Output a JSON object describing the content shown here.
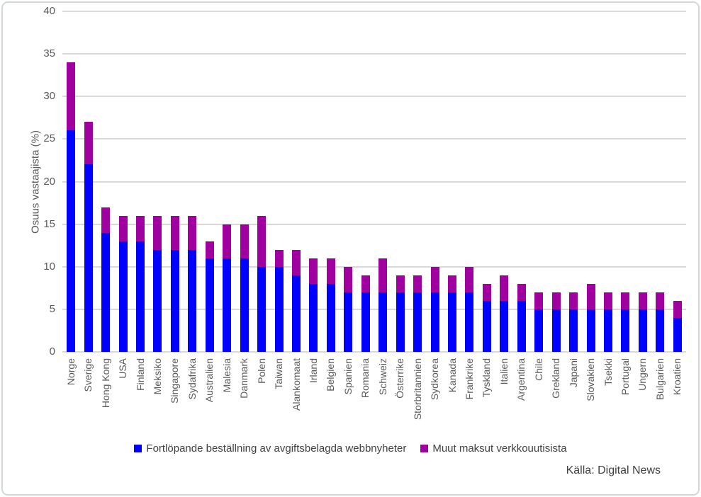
{
  "chart_data": {
    "type": "bar",
    "stacked": true,
    "orientation": "vertical",
    "title": "",
    "xlabel": "",
    "ylabel": "Osuus vastaajista (%)",
    "ylim": [
      0,
      40
    ],
    "ytick_step": 5,
    "grid": true,
    "legend_position": "bottom",
    "categories": [
      "Norge",
      "Sverige",
      "Hong Kong",
      "USA",
      "Finland",
      "Meksiko",
      "Singapore",
      "Sydafrika",
      "Australien",
      "Malesia",
      "Danmark",
      "Polen",
      "Taiwan",
      "Alankomaat",
      "Irland",
      "Belgien",
      "Spanien",
      "Romania",
      "Schweiz",
      "Österrike",
      "Storbritannien",
      "Sydkorea",
      "Kanada",
      "Frankrike",
      "Tyskland",
      "Italien",
      "Argentina",
      "Chile",
      "Grekland",
      "Japani",
      "Slovakien",
      "Tsekki",
      "Portugal",
      "Ungern",
      "Bulgarien",
      "Kroatien"
    ],
    "series": [
      {
        "name": "Fortlöpande beställning av avgiftsbelagda webbnyheter",
        "color": "#0000fe",
        "values": [
          26,
          22,
          14,
          13,
          13,
          12,
          12,
          12,
          11,
          11,
          11,
          10,
          10,
          9,
          8,
          8,
          7,
          7,
          7,
          7,
          7,
          7,
          7,
          7,
          6,
          6,
          6,
          5,
          5,
          5,
          5,
          5,
          5,
          5,
          5,
          4
        ]
      },
      {
        "name": "Muut maksut verkkouutisista",
        "color": "#a000a0",
        "values": [
          8,
          5,
          3,
          3,
          3,
          4,
          4,
          4,
          2,
          4,
          4,
          6,
          2,
          3,
          3,
          3,
          3,
          2,
          4,
          2,
          2,
          3,
          2,
          3,
          2,
          3,
          2,
          2,
          2,
          2,
          3,
          2,
          2,
          2,
          2,
          2
        ]
      }
    ],
    "totals": [
      34,
      27,
      17,
      16,
      16,
      16,
      16,
      16,
      13,
      15,
      15,
      16,
      12,
      12,
      11,
      11,
      10,
      9,
      11,
      9,
      9,
      10,
      9,
      10,
      8,
      9,
      8,
      7,
      7,
      7,
      8,
      7,
      7,
      7,
      7,
      6
    ],
    "source": "Källa: Digital News"
  },
  "appearance": {
    "gridline_color": "#d9d9d9",
    "axis_label_color": "#595959",
    "legend_text_color": "#404040",
    "frame_border_color": "#d2d8d2",
    "background_color": "#ffffff"
  }
}
